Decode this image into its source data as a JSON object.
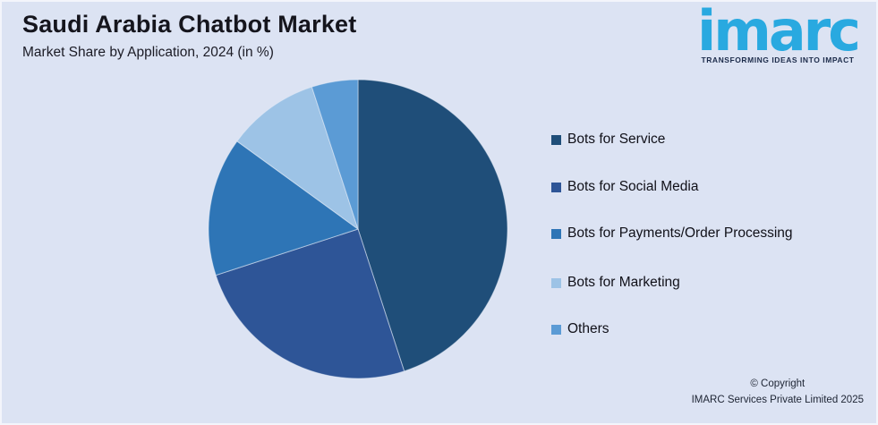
{
  "page": {
    "background_color": "#dce3f3"
  },
  "header": {
    "title": "Saudi Arabia Chatbot Market",
    "subtitle": "Market Share by Application, 2024 (in %)"
  },
  "logo": {
    "text": "imarc",
    "tagline": "TRANSFORMING IDEAS INTO IMPACT",
    "brand_color": "#29a9e0",
    "tagline_color": "#1c2b4a"
  },
  "chart_data": {
    "type": "pie",
    "title": "Saudi Arabia Chatbot Market",
    "subtitle": "Market Share by Application, 2024 (in %)",
    "units": "%",
    "legend_position": "right",
    "start_angle_deg_from_top": 0,
    "direction": "clockwise",
    "series": [
      {
        "name": "Bots for Service",
        "value": 45,
        "color": "#1f4e79"
      },
      {
        "name": "Bots for Social Media",
        "value": 25,
        "color": "#2e5597"
      },
      {
        "name": "Bots for Payments/Order Processing",
        "value": 15,
        "color": "#2e75b6"
      },
      {
        "name": "Bots for Marketing",
        "value": 10,
        "color": "#9dc3e6"
      },
      {
        "name": "Others",
        "value": 5,
        "color": "#5b9bd5"
      }
    ]
  },
  "footer": {
    "copyright_line1": "© Copyright",
    "copyright_line2": "IMARC Services Private Limited 2025"
  }
}
